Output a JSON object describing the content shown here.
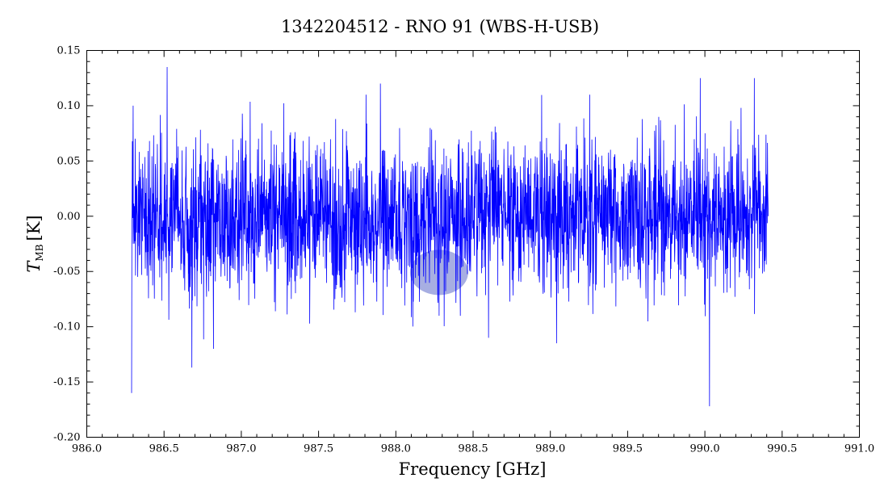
{
  "chart_data": {
    "type": "line",
    "title": "1342204512 - RNO 91 (WBS-H-USB)",
    "xlabel": "Frequency [GHz]",
    "ylabel_main": "T",
    "ylabel_sub": "MB",
    "ylabel_unit": "[K]",
    "xlim": [
      986.0,
      991.0
    ],
    "ylim": [
      -0.2,
      0.15
    ],
    "xticks": [
      "986.0",
      "986.5",
      "987.0",
      "987.5",
      "988.0",
      "988.5",
      "989.0",
      "989.5",
      "990.0",
      "990.5",
      "991.0"
    ],
    "yticks": [
      "-0.20",
      "-0.15",
      "-0.10",
      "-0.05",
      "0.00",
      "0.05",
      "0.10",
      "0.15"
    ],
    "grid": false,
    "series": [
      {
        "color": "#0000ff",
        "x_range": [
          986.29,
          990.41
        ],
        "noise_rms": 0.035,
        "x": [
          986.29,
          986.3,
          986.52,
          986.68,
          986.82,
          987.9,
          988.28,
          988.6,
          989.04,
          989.97,
          990.03,
          990.32,
          990.41
        ],
        "y": [
          -0.16,
          0.1,
          0.135,
          -0.137,
          -0.12,
          0.12,
          -0.09,
          -0.11,
          -0.115,
          0.125,
          -0.172,
          0.125,
          0.0
        ]
      }
    ],
    "highlight": {
      "x": 988.28,
      "y": -0.045,
      "color": "#8a93d8"
    }
  }
}
